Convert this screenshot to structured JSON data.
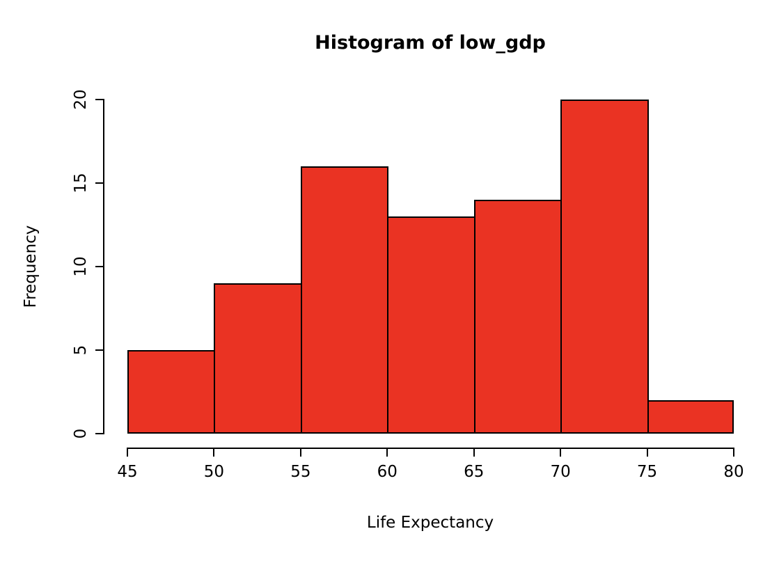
{
  "chart_data": {
    "type": "bar",
    "subtype": "histogram",
    "title": "Histogram of low_gdp",
    "xlabel": "Life Expectancy",
    "ylabel": "Frequency",
    "bin_edges": [
      45,
      50,
      55,
      60,
      65,
      70,
      75,
      80
    ],
    "values": [
      5,
      9,
      16,
      13,
      14,
      20,
      2
    ],
    "x_ticks": [
      45,
      50,
      55,
      60,
      65,
      70,
      75,
      80
    ],
    "y_ticks": [
      0,
      5,
      10,
      15,
      20
    ],
    "xlim": [
      45,
      80
    ],
    "ylim": [
      0,
      20
    ],
    "grid": false,
    "legend": "none",
    "bar_fill_color": "#EA3323",
    "bar_stroke_color": "#000000",
    "axis_color": "#000000",
    "background_color": "#FFFFFF"
  }
}
